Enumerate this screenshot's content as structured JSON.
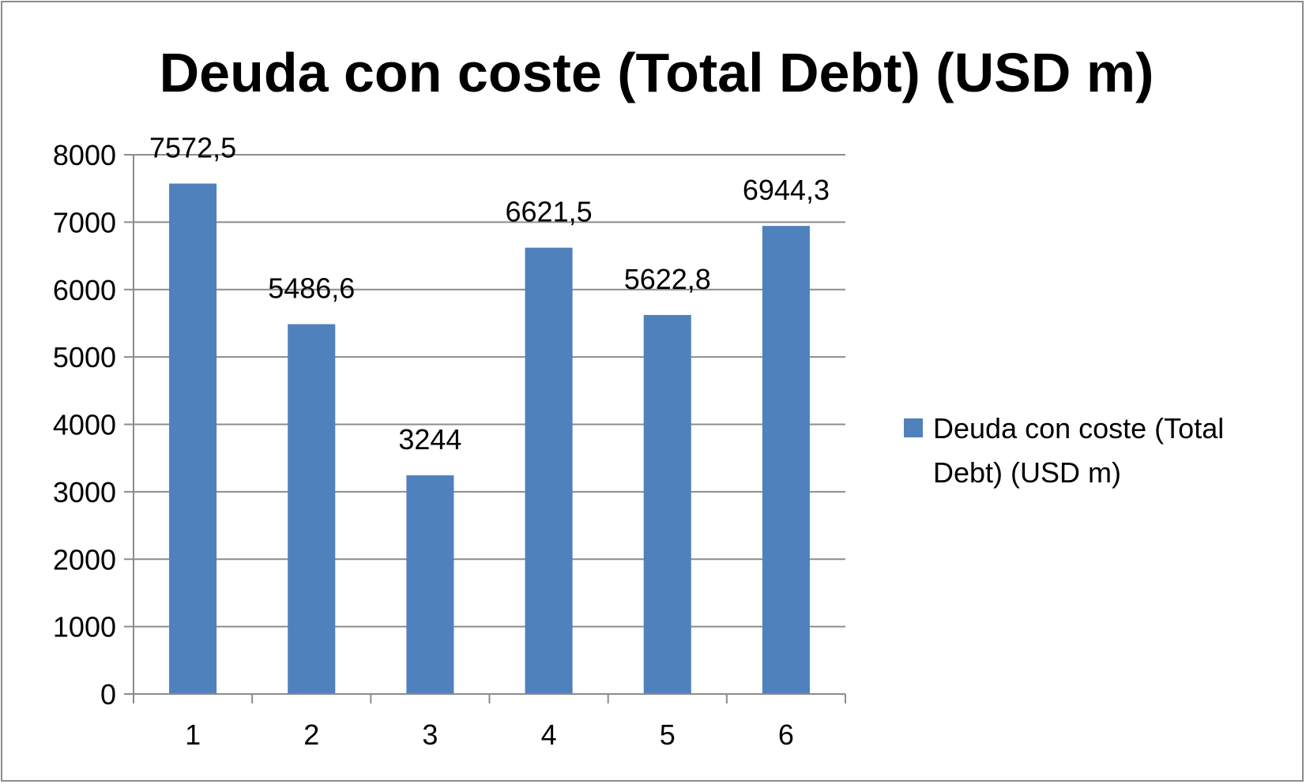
{
  "chart_data": {
    "type": "bar",
    "title": "Deuda con coste (Total Debt) (USD m)",
    "xlabel": "",
    "ylabel": "",
    "categories": [
      "1",
      "2",
      "3",
      "4",
      "5",
      "6"
    ],
    "series": [
      {
        "name": "Deuda con coste (Total Debt) (USD m)",
        "values": [
          7572.5,
          5486.6,
          3244,
          6621.5,
          5622.8,
          6944.3
        ],
        "labels": [
          "7572,5",
          "5486,6",
          "3244",
          "6621,5",
          "5622,8",
          "6944,3"
        ],
        "color": "#4f81bd"
      }
    ],
    "ylim": [
      0,
      8000
    ],
    "yticks": [
      0,
      1000,
      2000,
      3000,
      4000,
      5000,
      6000,
      7000,
      8000
    ],
    "grid": true,
    "legend_position": "right",
    "legend_lines": [
      "Deuda con coste (Total",
      "Debt) (USD m)"
    ],
    "gridline_color": "#8c8c8c"
  }
}
